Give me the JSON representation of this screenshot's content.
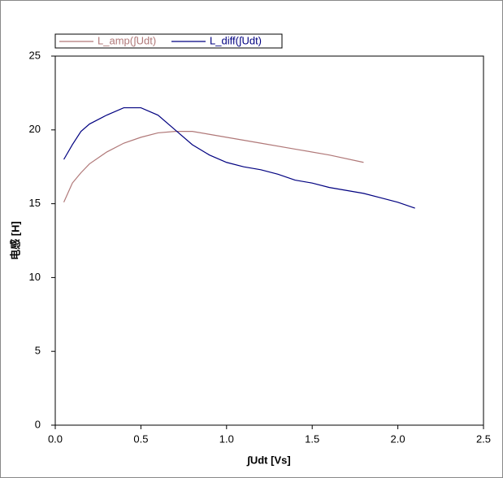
{
  "chart_data": {
    "type": "line",
    "x_label": "∫Udt [Vs]",
    "y_label": "电感 [H]",
    "xlim": [
      0,
      2.5
    ],
    "ylim": [
      0,
      25
    ],
    "xticks": [
      {
        "value": 0,
        "label": "0.0"
      },
      0.5,
      {
        "value": 1,
        "label": "1.0"
      },
      1.5,
      {
        "value": 2,
        "label": "2.0"
      },
      2.5
    ],
    "yticks": [
      0,
      5,
      10,
      15,
      20,
      25
    ],
    "grid": false,
    "legend": "top",
    "series": [
      {
        "name": "L_amp(∫Udt)",
        "color": "#b07878",
        "x": [
          0.05,
          0.1,
          0.15,
          0.2,
          0.3,
          0.4,
          0.5,
          0.6,
          0.7,
          0.8,
          0.9,
          1.0,
          1.2,
          1.4,
          1.6,
          1.8
        ],
        "values": [
          15.1,
          16.4,
          17.1,
          17.7,
          18.5,
          19.1,
          19.5,
          19.8,
          19.9,
          19.9,
          19.7,
          19.5,
          19.1,
          18.7,
          18.3,
          17.8
        ]
      },
      {
        "name": "L_diff(∫Udt)",
        "color": "#000080",
        "x": [
          0.05,
          0.1,
          0.15,
          0.2,
          0.3,
          0.4,
          0.5,
          0.6,
          0.7,
          0.8,
          0.9,
          1.0,
          1.1,
          1.2,
          1.3,
          1.4,
          1.5,
          1.6,
          1.7,
          1.8,
          1.9,
          2.0,
          2.1
        ],
        "values": [
          18.0,
          19.0,
          19.9,
          20.4,
          21.0,
          21.5,
          21.5,
          21.0,
          20.0,
          19.0,
          18.3,
          17.8,
          17.5,
          17.3,
          17.0,
          16.6,
          16.4,
          16.1,
          15.9,
          15.7,
          15.4,
          15.1,
          14.7
        ]
      }
    ]
  }
}
